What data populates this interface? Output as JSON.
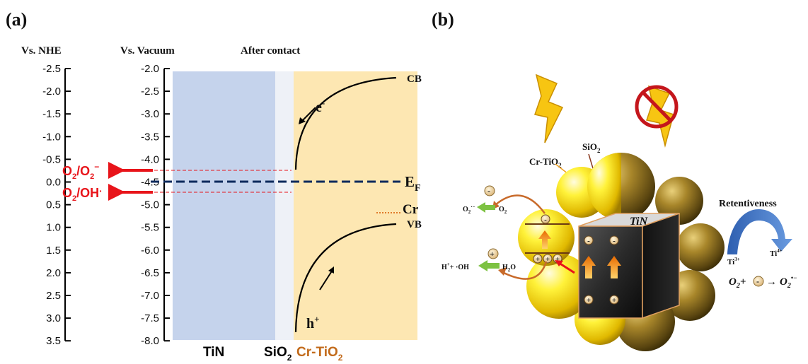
{
  "panel_a": {
    "label": "(a)",
    "header_nhe": "Vs. NHE",
    "header_vacuum": "Vs. Vacuum",
    "header_contact": "After contact",
    "nhe_ticks": [
      "-2.5",
      "-2.0",
      "-1.5",
      "-1.0",
      "-0.5",
      "0.0",
      "0.5",
      "1.0",
      "1.5",
      "2.0",
      "2.5",
      "3.0",
      "3.5"
    ],
    "vacuum_ticks": [
      "-2.0",
      "-2.5",
      "-3.0",
      "-3.5",
      "-4.0",
      "-4.5",
      "-5.0",
      "-5.5",
      "-6.0",
      "-6.5",
      "-7.0",
      "-7.5",
      "-8.0"
    ],
    "cb_label": "CB",
    "vb_label": "VB",
    "electron": "e",
    "electron_sup": "-",
    "hole": "h",
    "hole_sup": "+",
    "fermi": "E",
    "fermi_sub": "F",
    "cr_label": "Cr",
    "redox_o2_superoxide": {
      "a": "O",
      "a_sub": "2",
      "sep": "/O",
      "b_sub": "2",
      "b_sup": "−"
    },
    "redox_o2_oh": {
      "a": "O",
      "a_sub": "2",
      "sep": "/OH",
      "b_sup": "·"
    },
    "region_tin": "TiN",
    "region_sio2": "SiO",
    "region_sio2_sub": "2",
    "region_crtio2": "Cr-TiO",
    "region_crtio2_sub": "2",
    "colors": {
      "tin": "#c5d3ec",
      "sio2": "#eef1f7",
      "crtio2": "#fde7b2",
      "red": "#e8141a",
      "navy": "#0d2a5c",
      "orange": "#e07a2a"
    }
  },
  "panel_b": {
    "label": "(b)",
    "crtio2": "Cr-TiO",
    "crtio2_sub": "2",
    "sio2": "SiO",
    "sio2_sub": "2",
    "tin": "TiN",
    "retentiveness": "Retentiveness",
    "ti3": "Ti",
    "ti3_sup": "3+",
    "ti4": "Ti",
    "ti4_sup": "4+",
    "o2_superoxide": "O",
    "o2_superoxide_sub": "2",
    "o2_superoxide_sup": "·−",
    "o2": "O",
    "o2_sub": "2",
    "h_plus_oh": "H",
    "h_plus_oh_sup": "+",
    "oh_text": "+ ·OH",
    "h2o": "H",
    "h2o_sub": "2",
    "h2o_end": "O",
    "eq_o2": "O",
    "eq_o2_sub": "2",
    "eq_plus": "+",
    "eq_arrow": "→",
    "eq_product": "O",
    "eq_product_sub": "2",
    "eq_product_sup": "•−",
    "minus": "-",
    "plus": "+",
    "icons": [
      "lightning-icon",
      "no-light-icon",
      "curved-arrow-icon",
      "green-arrow-icon"
    ]
  }
}
